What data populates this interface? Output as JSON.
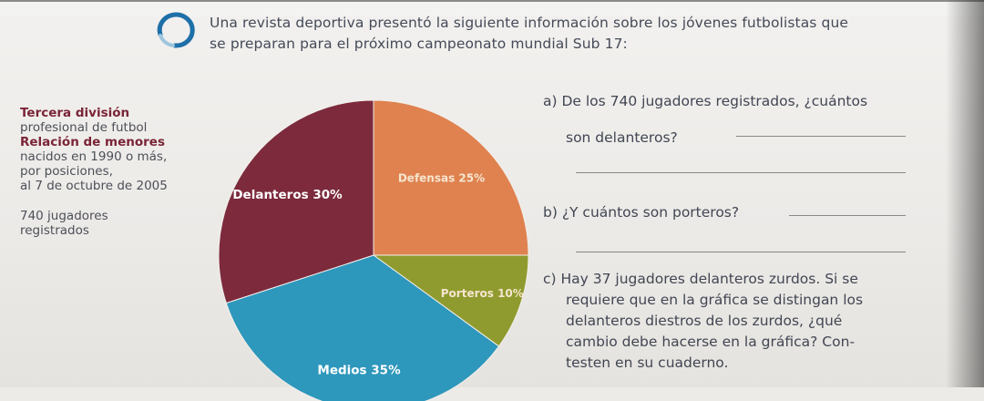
{
  "intro": {
    "line1": "Una revista deportiva presentó la siguiente información sobre los jóvenes futbolistas que",
    "line2": "se preparan para el próximo campeonato mundial Sub 17:"
  },
  "info": {
    "line1": "Tercera división",
    "line2": "profesional de futbol",
    "line3": "Relación de menores",
    "line4": "nacidos en 1990 o más,",
    "line5": "por posiciones,",
    "line6": "al 7 de octubre de 2005",
    "line7": "740 jugadores",
    "line8": "registrados"
  },
  "chart_data": {
    "type": "pie",
    "title": "",
    "categories": [
      "Defensas",
      "Porteros",
      "Medios",
      "Delanteros"
    ],
    "values": [
      25,
      10,
      35,
      30
    ],
    "labels": [
      "Defensas 25%",
      "Porteros 10%",
      "Medios 35%",
      "Delanteros 30%"
    ],
    "colors": [
      "#df8250",
      "#8f9b2e",
      "#2e97bc",
      "#7c2a3c"
    ],
    "legend": "none"
  },
  "questions": {
    "a": {
      "line1": "a)  De los 740 jugadores registrados, ¿cuántos",
      "line2": "son   delanteros?"
    },
    "b": {
      "line1": "b)  ¿Y cuántos son porteros?"
    },
    "c": {
      "line1": "c)  Hay 37 jugadores delanteros zurdos. Si se",
      "line2": "requiere que en la gráfica se distingan los",
      "line3": "delanteros  diestros  de  los  zurdos,  ¿qué",
      "line4": "cambio debe hacerse en la gráfica? Con-",
      "line5": "testen en su cuaderno."
    }
  }
}
